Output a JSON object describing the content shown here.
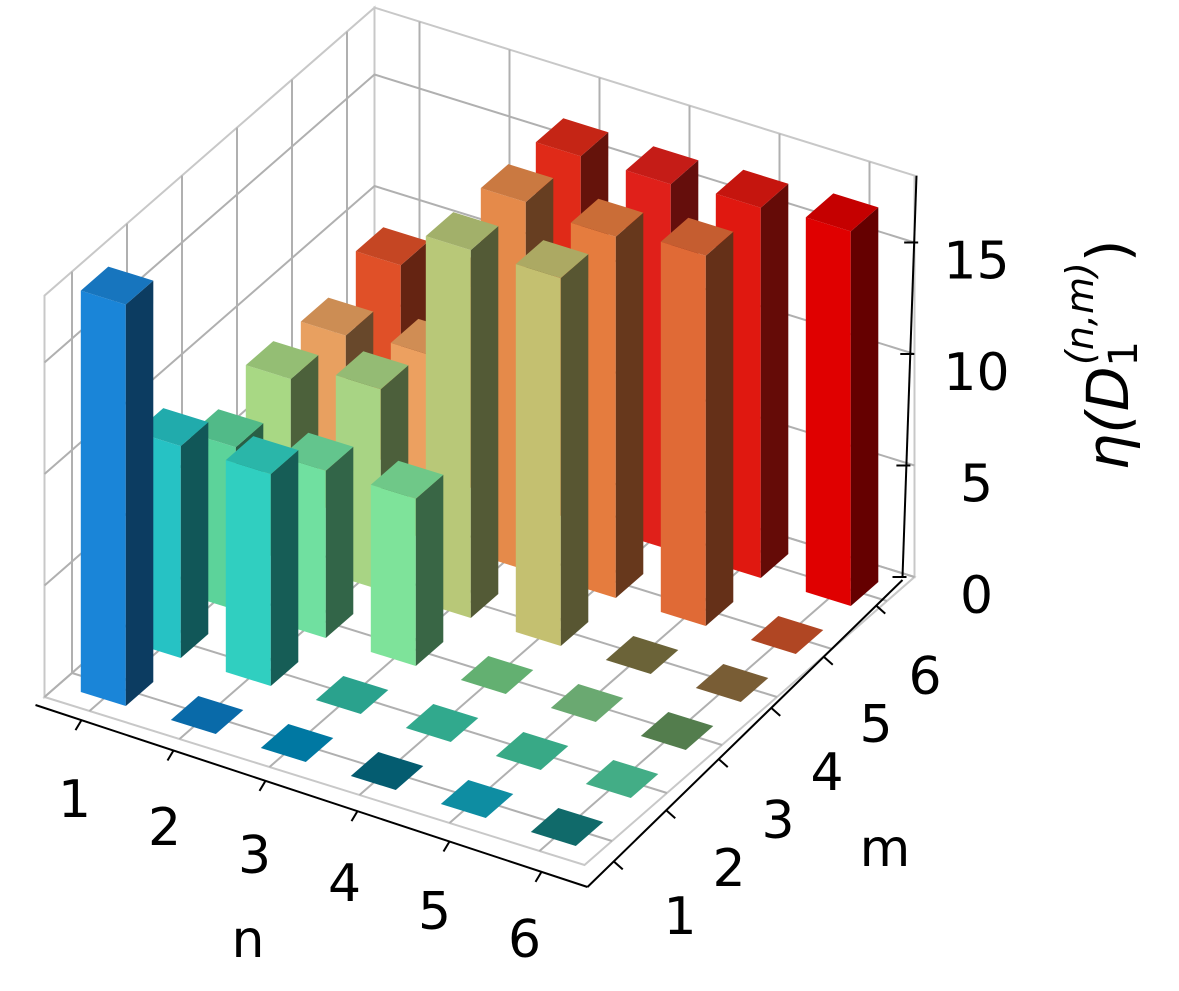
{
  "chart_data": {
    "type": "bar3d",
    "x_label": "n",
    "y_label": "m",
    "z_label": [
      "η(D",
      "1",
      "(n,m)",
      ")"
    ],
    "x_categories": [
      "1",
      "2",
      "3",
      "4",
      "5",
      "6"
    ],
    "y_categories": [
      "1",
      "2",
      "3",
      "4",
      "5",
      "6"
    ],
    "zlim": [
      0,
      18
    ],
    "zticks": [
      0,
      5,
      10,
      15
    ],
    "grid": true,
    "values": [
      [
        18,
        0,
        0,
        0,
        0,
        0
      ],
      [
        9.5,
        9.5,
        0,
        0,
        0,
        0
      ],
      [
        7.3,
        7.5,
        7.5,
        0,
        0,
        0
      ],
      [
        8.2,
        9,
        16.5,
        16.5,
        0,
        0
      ],
      [
        8,
        8.3,
        16.5,
        16.2,
        16.6,
        0
      ],
      [
        9,
        9,
        16.4,
        16.4,
        16.6,
        16.8
      ]
    ],
    "colors": [
      [
        "#1a85d8",
        "#0a78c0",
        "#0088b8",
        "#04687f",
        "#10a0b8",
        "#127878"
      ],
      [
        "#26c2c4",
        "#30cfc0",
        "#30b8a0",
        "#38c0a0",
        "#40c098",
        "#4cc598"
      ],
      [
        "#5cd39a",
        "#70e0a0",
        "#7ee39a",
        "#70c880",
        "#78c080",
        "#5e8e58"
      ],
      [
        "#a8d884",
        "#a8d484",
        "#b8c878",
        "#c4c070",
        "#7a7040",
        "#8a6a3c"
      ],
      [
        "#e8a060",
        "#eca060",
        "#e58a4a",
        "#e57c3e",
        "#e06a36",
        "#c85028"
      ],
      [
        "#e05028",
        "#e04a28",
        "#e02a18",
        "#e0201a",
        "#e01810",
        "#e00000"
      ]
    ]
  }
}
